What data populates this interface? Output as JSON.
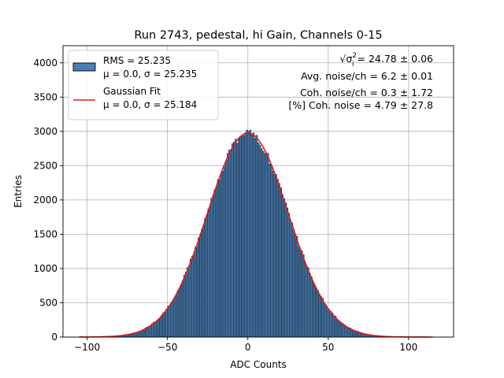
{
  "chart_data": {
    "type": "bar",
    "title": "Run 2743, pedestal, hi Gain, Channels 0-15",
    "xlabel": "ADC Counts",
    "ylabel": "Entries",
    "xlim": [
      -115,
      128
    ],
    "ylim": [
      0,
      4250
    ],
    "xticks": [
      -100,
      -50,
      0,
      50,
      100
    ],
    "yticks": [
      0,
      500,
      1000,
      1500,
      2000,
      2500,
      3000,
      3500,
      4000
    ],
    "grid": true,
    "legend_position": "top-left",
    "histogram": {
      "name": "RMS = 25.235",
      "name_line2": "μ = 0.0, σ = 25.235",
      "bin_range": [
        -105,
        115
      ],
      "bin_count": 220,
      "mu": 0.0,
      "sigma": 25.235,
      "peak_entries": 2970,
      "color": "#4a7fb5",
      "edge_color": "#000000"
    },
    "fit": {
      "name": "Gaussian Fit",
      "name_line2": "μ = 0.0, σ = 25.184",
      "x_range": [
        -105,
        115
      ],
      "mu": 0.0,
      "sigma": 25.184,
      "amplitude": 2975,
      "color": "#e41a1c"
    },
    "annotations": [
      {
        "prefix": "√σ",
        "sup": "2",
        "sub": "i",
        "text": " = 24.78 ± 0.06"
      },
      {
        "text": "Avg. noise/ch = 6.2 ± 0.01"
      },
      {
        "text": "Coh. noise/ch = 0.3 ± 1.72"
      },
      {
        "text": "[%] Coh. noise = 4.79 ± 27.8"
      }
    ]
  }
}
